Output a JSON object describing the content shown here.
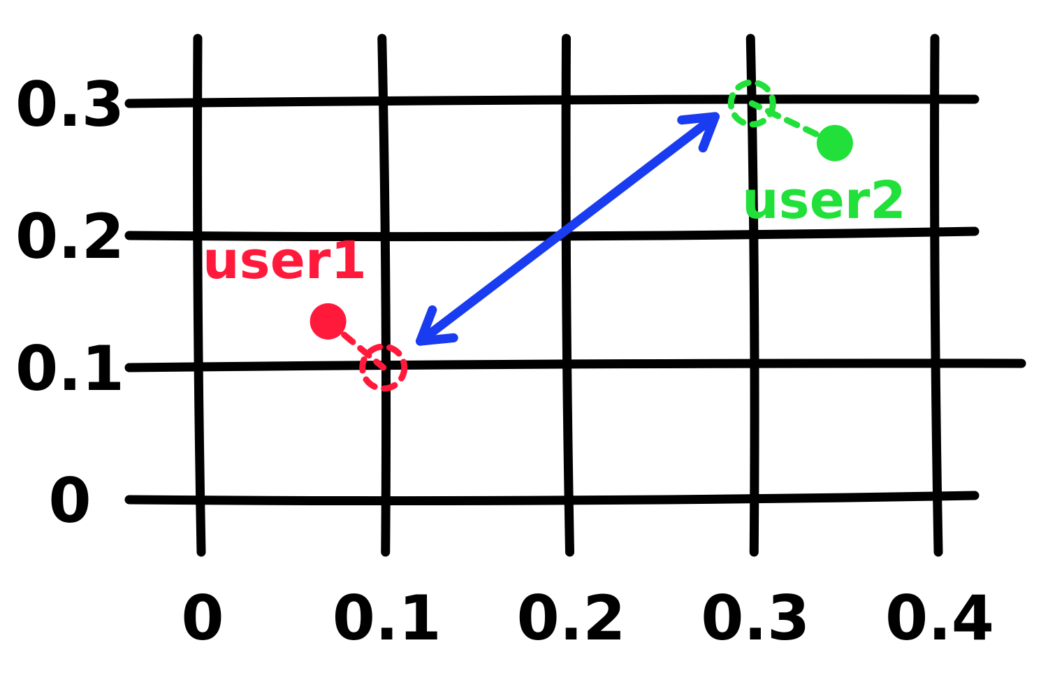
{
  "chart_data": {
    "type": "scatter",
    "title": "",
    "xlabel": "",
    "ylabel": "",
    "x_ticks": [
      "0",
      "0.1",
      "0.2",
      "0.3",
      "0.4"
    ],
    "y_ticks": [
      "0",
      "0.1",
      "0.2",
      "0.3"
    ],
    "xlim": [
      0,
      0.4
    ],
    "ylim": [
      0,
      0.3
    ],
    "grid": true,
    "series": [
      {
        "name": "user1",
        "color": "#ff1a3c",
        "point": {
          "x": 0.07,
          "y": 0.135
        },
        "snapped_point": {
          "x": 0.1,
          "y": 0.1
        }
      },
      {
        "name": "user2",
        "color": "#22e03a",
        "point": {
          "x": 0.345,
          "y": 0.27
        },
        "snapped_point": {
          "x": 0.3,
          "y": 0.3
        }
      }
    ],
    "annotations": [
      {
        "type": "double-arrow",
        "color": "#1a3cf0",
        "from": {
          "x": 0.12,
          "y": 0.12
        },
        "to": {
          "x": 0.28,
          "y": 0.29
        }
      }
    ]
  }
}
